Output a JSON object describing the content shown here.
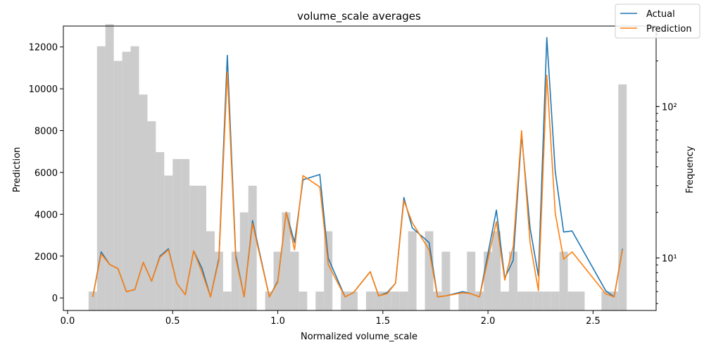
{
  "chart_data": {
    "type": "line",
    "title": "volume_scale averages",
    "xlabel": "Normalized volume_scale",
    "ylabel": "Prediction",
    "y2label": "Frequency",
    "xlim": [
      -0.02,
      2.8
    ],
    "ylim": [
      -600,
      13000
    ],
    "y2_scale": "log",
    "y2lim": [
      4.5,
      340
    ],
    "x_ticks": [
      0.0,
      0.5,
      1.0,
      1.5,
      2.0,
      2.5
    ],
    "x_tick_labels": [
      "0.0",
      "0.5",
      "1.0",
      "1.5",
      "2.0",
      "2.5"
    ],
    "y_ticks": [
      0,
      2000,
      4000,
      6000,
      8000,
      10000,
      12000
    ],
    "y_tick_labels": [
      "0",
      "2000",
      "4000",
      "6000",
      "8000",
      "10000",
      "12000"
    ],
    "y2_ticks": [
      10,
      100
    ],
    "y2_tick_labels": [
      "10¹",
      "10²"
    ],
    "grid": false,
    "legend_position": "top-right",
    "series": [
      {
        "name": "Actual",
        "color": "#1f77b4",
        "x": [
          0.12,
          0.16,
          0.2,
          0.24,
          0.28,
          0.32,
          0.36,
          0.4,
          0.44,
          0.48,
          0.52,
          0.56,
          0.6,
          0.64,
          0.68,
          0.72,
          0.76,
          0.8,
          0.84,
          0.88,
          0.96,
          1.0,
          1.04,
          1.08,
          1.12,
          1.2,
          1.24,
          1.32,
          1.36,
          1.44,
          1.48,
          1.52,
          1.56,
          1.6,
          1.64,
          1.72,
          1.76,
          1.8,
          1.88,
          1.92,
          1.96,
          2.04,
          2.08,
          2.12,
          2.16,
          2.2,
          2.24,
          2.28,
          2.32,
          2.36,
          2.4,
          2.56,
          2.6,
          2.64
        ],
        "values": [
          50,
          2200,
          1600,
          1400,
          300,
          400,
          1700,
          800,
          2000,
          2350,
          700,
          150,
          2250,
          1400,
          50,
          1900,
          11600,
          2050,
          50,
          3700,
          50,
          800,
          4100,
          2650,
          5650,
          5900,
          1900,
          50,
          250,
          1250,
          100,
          250,
          700,
          4800,
          3350,
          2650,
          50,
          100,
          300,
          200,
          50,
          4200,
          950,
          1800,
          7800,
          3350,
          1050,
          12450,
          6050,
          3150,
          3200,
          350,
          50,
          2350
        ]
      },
      {
        "name": "Prediction",
        "color": "#ff7f0e",
        "x": [
          0.12,
          0.16,
          0.2,
          0.24,
          0.28,
          0.32,
          0.36,
          0.4,
          0.44,
          0.48,
          0.52,
          0.56,
          0.6,
          0.64,
          0.68,
          0.72,
          0.76,
          0.8,
          0.84,
          0.88,
          0.96,
          1.0,
          1.04,
          1.08,
          1.12,
          1.2,
          1.24,
          1.32,
          1.36,
          1.44,
          1.48,
          1.52,
          1.56,
          1.6,
          1.64,
          1.72,
          1.76,
          1.8,
          1.88,
          1.92,
          1.96,
          2.04,
          2.08,
          2.12,
          2.16,
          2.2,
          2.24,
          2.28,
          2.32,
          2.36,
          2.4,
          2.56,
          2.6,
          2.64
        ],
        "values": [
          50,
          2100,
          1600,
          1400,
          300,
          400,
          1700,
          800,
          1950,
          2300,
          700,
          150,
          2250,
          1200,
          50,
          1800,
          10800,
          1900,
          50,
          3550,
          50,
          750,
          4100,
          2300,
          5850,
          5300,
          1600,
          50,
          250,
          1250,
          100,
          200,
          700,
          4650,
          3600,
          2300,
          50,
          100,
          250,
          200,
          50,
          3650,
          850,
          2450,
          8000,
          2650,
          350,
          10650,
          4050,
          1850,
          2200,
          200,
          50,
          2300
        ]
      }
    ],
    "histogram": {
      "name": "Frequency",
      "color": "#cccccc",
      "bin_width": 0.04,
      "bin_starts": [
        0.1,
        0.14,
        0.18,
        0.22,
        0.26,
        0.3,
        0.34,
        0.38,
        0.42,
        0.46,
        0.5,
        0.54,
        0.58,
        0.62,
        0.66,
        0.7,
        0.74,
        0.78,
        0.82,
        0.86,
        0.94,
        0.98,
        1.02,
        1.06,
        1.1,
        1.18,
        1.22,
        1.3,
        1.34,
        1.42,
        1.46,
        1.5,
        1.54,
        1.58,
        1.62,
        1.7,
        1.74,
        1.78,
        1.86,
        1.9,
        1.94,
        1.98,
        2.02,
        2.06,
        2.1,
        2.14,
        2.18,
        2.22,
        2.26,
        2.3,
        2.34,
        2.38,
        2.42,
        2.54,
        2.58,
        2.62
      ],
      "counts": [
        6,
        250,
        350,
        200,
        230,
        250,
        120,
        80,
        50,
        35,
        45,
        45,
        30,
        30,
        15,
        11,
        6,
        11,
        20,
        30,
        6,
        11,
        20,
        11,
        6,
        6,
        15,
        6,
        6,
        6,
        6,
        6,
        6,
        6,
        15,
        15,
        6,
        11,
        6,
        11,
        6,
        11,
        15,
        6,
        11,
        6,
        6,
        6,
        6,
        6,
        11,
        6,
        6,
        6,
        6,
        140
      ]
    }
  }
}
